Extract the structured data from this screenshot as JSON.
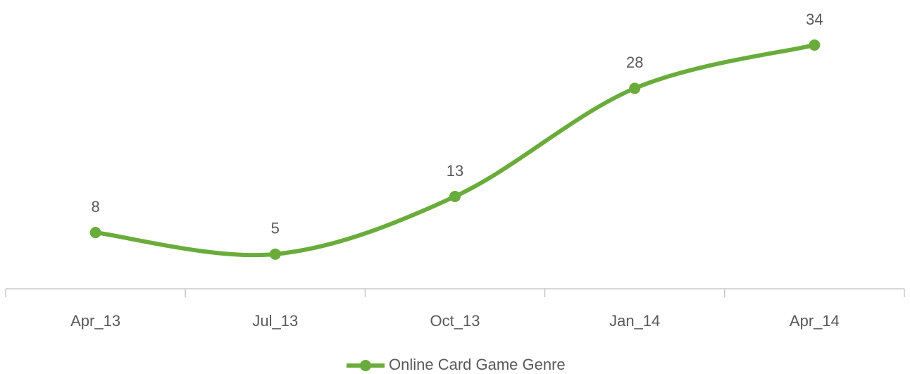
{
  "chart_data": {
    "type": "line",
    "categories": [
      "Apr_13",
      "Jul_13",
      "Oct_13",
      "Jan_14",
      "Apr_14"
    ],
    "series": [
      {
        "name": "Online Card Game Genre",
        "color": "#6aac3b",
        "values": [
          8,
          5,
          13,
          28,
          34
        ]
      }
    ],
    "legend": "bottom",
    "smooth": true,
    "data_labels": true
  }
}
